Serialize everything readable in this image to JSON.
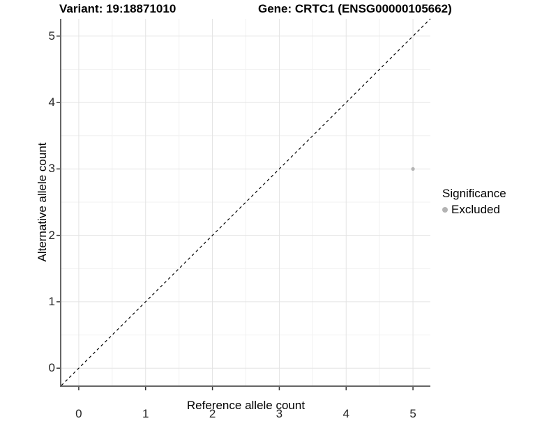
{
  "header": {
    "variant_title": "Variant: 19:18871010",
    "gene_title": "Gene: CRTC1 (ENSG00000105662)"
  },
  "legend": {
    "title": "Significance",
    "position": "right",
    "items": [
      {
        "label": "Excluded",
        "color": "#b3b3b3",
        "marker": "dot"
      }
    ]
  },
  "chart_data": {
    "type": "scatter",
    "title": "Variant: 19:18871010 — Gene: CRTC1 (ENSG00000105662)",
    "xlabel": "Reference allele count",
    "ylabel": "Alternative allele count",
    "xlim": [
      -0.26,
      5.26
    ],
    "ylim": [
      -0.26,
      5.26
    ],
    "xticks": [
      0,
      1,
      2,
      3,
      4,
      5
    ],
    "yticks": [
      0,
      1,
      2,
      3,
      4,
      5
    ],
    "minor_gridlines": [
      0.5,
      1.5,
      2.5,
      3.5,
      4.5
    ],
    "grid": "on",
    "legend_position": "right",
    "series": [
      {
        "name": "Excluded",
        "color": "#b3b3b3",
        "marker_radius": 2.6,
        "points": [
          {
            "x": 5,
            "y": 3
          }
        ]
      }
    ],
    "reference_line": {
      "type": "identity",
      "slope": 1,
      "intercept": 0,
      "style": "dashed",
      "color": "#000000"
    }
  },
  "colors": {
    "background": "#ffffff",
    "axis_line": "#666666",
    "tick_mark": "#333333",
    "tick_label": "#262626",
    "grid_major": "#e3e3e3",
    "grid_minor": "#f1f1f1",
    "point": "#b3b3b3",
    "reference_line": "#000000"
  }
}
